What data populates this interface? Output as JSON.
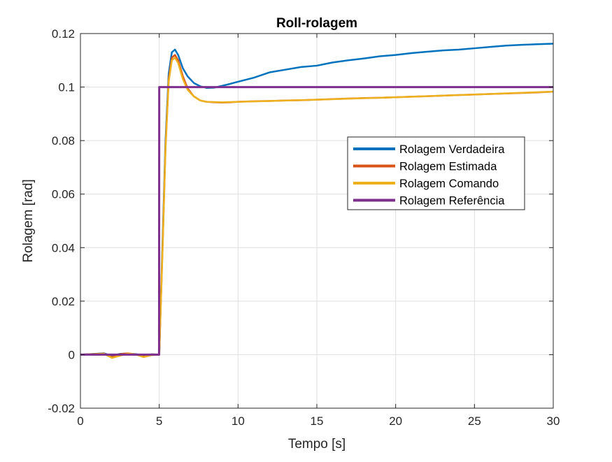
{
  "chart_data": {
    "type": "line",
    "title": "Roll-rolagem",
    "xlabel": "Tempo [s]",
    "ylabel": "Rolagem [rad]",
    "xlim": [
      0,
      30
    ],
    "ylim": [
      -0.02,
      0.12
    ],
    "xticks": [
      0,
      5,
      10,
      15,
      20,
      25,
      30
    ],
    "yticks": [
      -0.02,
      0,
      0.02,
      0.04,
      0.06,
      0.08,
      0.1,
      0.12
    ],
    "xtick_labels": [
      "0",
      "5",
      "10",
      "15",
      "20",
      "25",
      "30"
    ],
    "ytick_labels": [
      "-0.02",
      "0",
      "0.02",
      "0.04",
      "0.06",
      "0.08",
      "0.1",
      "0.12"
    ],
    "grid": true,
    "legend_position": "right-center",
    "series": [
      {
        "name": "Rolagem Verdadeira",
        "color": "#0072BD",
        "x": [
          0,
          1.5,
          2,
          2.5,
          3,
          3.5,
          4,
          4.5,
          5,
          5.2,
          5.4,
          5.6,
          5.8,
          6.0,
          6.2,
          6.5,
          6.8,
          7.2,
          7.6,
          8.0,
          8.5,
          9,
          9.5,
          10,
          11,
          12,
          13,
          14,
          15,
          16,
          17,
          18,
          19,
          20,
          21,
          22,
          23,
          24,
          25,
          26,
          27,
          28,
          29,
          30
        ],
        "y": [
          0,
          0.0005,
          -0.0005,
          0.0003,
          0.0004,
          0.0002,
          -0.0003,
          0.0001,
          0.0,
          0.04,
          0.08,
          0.105,
          0.113,
          0.114,
          0.112,
          0.107,
          0.104,
          0.1015,
          0.1003,
          0.0997,
          0.0998,
          0.1005,
          0.1012,
          0.102,
          0.1035,
          0.1055,
          0.1065,
          0.1075,
          0.108,
          0.1092,
          0.11,
          0.1107,
          0.1115,
          0.112,
          0.1127,
          0.1132,
          0.1137,
          0.114,
          0.1145,
          0.115,
          0.1155,
          0.1158,
          0.116,
          0.1162
        ]
      },
      {
        "name": "Rolagem Estimada",
        "color": "#D95319",
        "x": [
          0,
          1.5,
          2,
          2.5,
          3,
          3.5,
          4,
          4.5,
          5,
          5.2,
          5.4,
          5.6,
          5.8,
          6.0,
          6.2,
          6.5,
          6.8,
          7.2,
          7.6,
          8.0,
          8.5,
          9,
          9.5,
          10,
          11,
          12,
          13,
          14,
          15,
          16,
          17,
          18,
          19,
          20,
          21,
          22,
          23,
          24,
          25,
          26,
          27,
          28,
          29,
          30
        ],
        "y": [
          0,
          0.0004,
          -0.0009,
          0.0002,
          0.0005,
          0.0001,
          -0.0007,
          0.0001,
          0.0,
          0.038,
          0.078,
          0.103,
          0.111,
          0.112,
          0.11,
          0.104,
          0.0995,
          0.0965,
          0.095,
          0.0945,
          0.0943,
          0.0942,
          0.0943,
          0.0945,
          0.0947,
          0.0948,
          0.095,
          0.0951,
          0.0953,
          0.0955,
          0.0957,
          0.0959,
          0.096,
          0.0962,
          0.0964,
          0.0966,
          0.0968,
          0.097,
          0.0972,
          0.0974,
          0.0976,
          0.0978,
          0.098,
          0.0983
        ]
      },
      {
        "name": "Rolagem Comando",
        "color": "#EDB120",
        "x": [
          0,
          1.5,
          2,
          2.5,
          3,
          3.5,
          4,
          4.5,
          4.98,
          5.0,
          5.2,
          5.4,
          5.6,
          5.8,
          6.0,
          6.2,
          6.5,
          6.8,
          7.2,
          7.6,
          8.0,
          9,
          10,
          12,
          15,
          20,
          25,
          30
        ],
        "y": [
          0,
          0.0003,
          -0.0012,
          -0.0004,
          0.0004,
          0.0001,
          -0.0009,
          -0.0002,
          0.0,
          0.0,
          0.037,
          0.077,
          0.102,
          0.11,
          0.111,
          0.109,
          0.103,
          0.099,
          0.0965,
          0.095,
          0.0945,
          0.0943,
          0.0945,
          0.0948,
          0.0953,
          0.0962,
          0.0972,
          0.0983
        ]
      },
      {
        "name": "Rolagem Referência",
        "color": "#7E2F8E",
        "x": [
          0,
          4.99,
          5.0,
          30
        ],
        "y": [
          0,
          0,
          0.1,
          0.1
        ]
      }
    ]
  }
}
